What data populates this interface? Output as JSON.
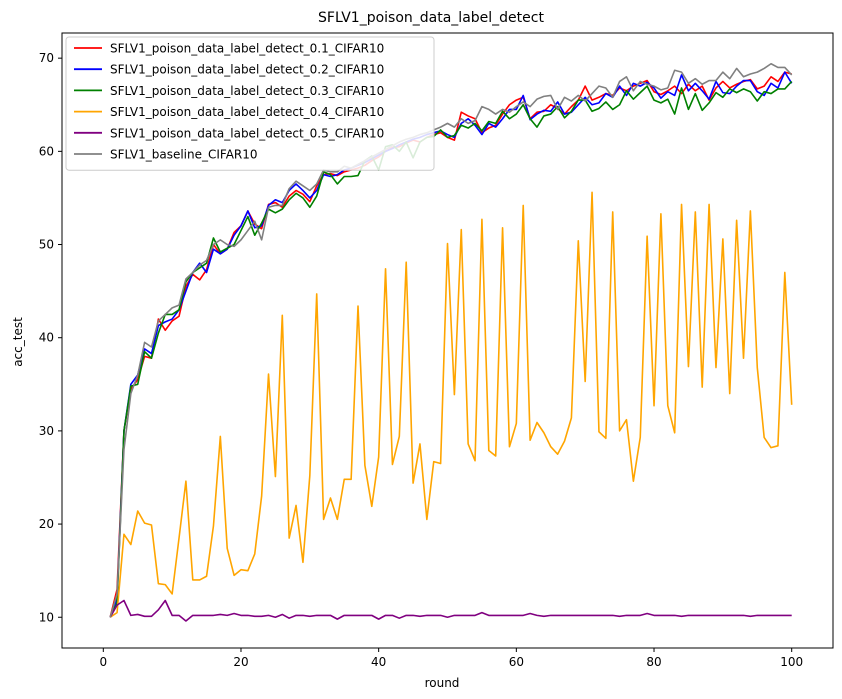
{
  "chart_data": {
    "type": "line",
    "title": "SFLV1_poison_data_label_detect",
    "xlabel": "round",
    "ylabel": "acc_test",
    "xlim": [
      -6,
      106
    ],
    "ylim": [
      6.7,
      72.7
    ],
    "xticks": [
      0,
      20,
      40,
      60,
      80,
      100
    ],
    "yticks": [
      10,
      20,
      30,
      40,
      50,
      60,
      70
    ],
    "grid": false,
    "legend_position": "top-left",
    "x": [
      1,
      2,
      3,
      4,
      5,
      6,
      7,
      8,
      9,
      10,
      11,
      12,
      13,
      14,
      15,
      16,
      17,
      18,
      19,
      20,
      21,
      22,
      23,
      24,
      25,
      26,
      27,
      28,
      29,
      30,
      31,
      32,
      33,
      34,
      35,
      36,
      37,
      38,
      39,
      40,
      41,
      42,
      43,
      44,
      45,
      46,
      47,
      48,
      49,
      50,
      51,
      52,
      53,
      54,
      55,
      56,
      57,
      58,
      59,
      60,
      61,
      62,
      63,
      64,
      65,
      66,
      67,
      68,
      69,
      70,
      71,
      72,
      73,
      74,
      75,
      76,
      77,
      78,
      79,
      80,
      81,
      82,
      83,
      84,
      85,
      86,
      87,
      88,
      89,
      90,
      91,
      92,
      93,
      94,
      95,
      96,
      97,
      98,
      99,
      100
    ],
    "series": [
      {
        "name": "SFLV1_poison_data_label_detect_0.1_CIFAR10",
        "color": "#ff0000",
        "values": [
          10.0,
          13.0,
          30.0,
          34.5,
          35.5,
          38.0,
          37.8,
          42.0,
          40.8,
          41.8,
          42.3,
          45.5,
          46.8,
          46.2,
          47.3,
          50.0,
          49.0,
          49.5,
          51.3,
          52.0,
          53.6,
          52.2,
          51.7,
          54.3,
          54.5,
          54.0,
          55.2,
          55.8,
          55.4,
          54.6,
          56.3,
          57.5,
          57.6,
          57.4,
          57.8,
          58.0,
          58.2,
          58.5,
          59.0,
          59.4,
          60.0,
          60.4,
          60.5,
          60.9,
          61.2,
          61.0,
          61.5,
          61.8,
          62.0,
          61.5,
          61.2,
          64.2,
          63.8,
          63.5,
          62.0,
          62.5,
          62.8,
          64.0,
          65.0,
          65.5,
          65.8,
          63.5,
          64.2,
          64.3,
          65.0,
          64.6,
          64.0,
          64.8,
          65.5,
          67.0,
          65.5,
          65.8,
          66.2,
          66.0,
          66.8,
          66.5,
          67.0,
          67.3,
          67.6,
          66.4,
          66.1,
          66.5,
          67.0,
          66.2,
          67.2,
          66.5,
          67.0,
          65.5,
          66.8,
          67.5,
          66.8,
          67.2,
          67.5,
          67.7,
          66.7,
          67.0,
          68.0,
          67.5,
          68.5,
          68.3
        ]
      },
      {
        "name": "SFLV1_poison_data_label_detect_0.2_CIFAR10",
        "color": "#0000ff",
        "values": [
          10.0,
          12.0,
          30.0,
          35.0,
          36.0,
          38.8,
          38.3,
          41.3,
          41.7,
          42.0,
          43.0,
          45.0,
          47.0,
          48.0,
          47.0,
          49.5,
          49.0,
          49.5,
          51.0,
          52.0,
          53.6,
          51.8,
          52.0,
          54.2,
          54.8,
          54.5,
          55.8,
          56.5,
          55.8,
          55.0,
          55.8,
          57.5,
          57.3,
          57.5,
          58.0,
          58.2,
          58.5,
          58.8,
          59.2,
          59.6,
          60.0,
          60.3,
          60.7,
          61.0,
          61.3,
          61.5,
          61.8,
          62.0,
          62.2,
          61.8,
          61.5,
          63.0,
          63.5,
          62.8,
          61.8,
          63.0,
          62.6,
          63.5,
          64.5,
          64.5,
          66.0,
          63.4,
          64.0,
          64.4,
          64.3,
          65.3,
          64.0,
          64.2,
          65.0,
          65.8,
          65.0,
          65.2,
          66.2,
          65.8,
          67.0,
          66.0,
          67.3,
          67.0,
          67.4,
          66.8,
          65.7,
          66.4,
          66.0,
          68.2,
          66.5,
          67.3,
          66.5,
          65.6,
          67.5,
          66.3,
          66.2,
          67.0,
          67.6,
          67.6,
          66.4,
          66.0,
          67.3,
          66.8,
          68.5,
          67.3
        ]
      },
      {
        "name": "SFLV1_poison_data_label_detect_0.3_CIFAR10",
        "color": "#008000",
        "values": [
          10.0,
          11.5,
          30.0,
          34.8,
          35.0,
          38.5,
          37.8,
          40.5,
          42.5,
          42.5,
          43.0,
          46.0,
          47.0,
          47.5,
          48.0,
          50.7,
          49.2,
          49.6,
          50.0,
          51.5,
          53.0,
          51.0,
          52.3,
          53.8,
          53.4,
          53.8,
          54.8,
          55.5,
          55.0,
          54.0,
          55.2,
          57.8,
          57.5,
          56.5,
          57.3,
          57.3,
          57.4,
          59.0,
          59.5,
          58.0,
          60.5,
          60.7,
          60.0,
          61.0,
          59.3,
          61.0,
          61.5,
          61.6,
          62.3,
          61.5,
          61.7,
          62.8,
          62.5,
          63.0,
          62.2,
          63.2,
          63.0,
          64.3,
          63.5,
          64.0,
          65.0,
          63.5,
          62.6,
          63.8,
          64.0,
          64.8,
          63.6,
          64.3,
          65.5,
          65.5,
          64.3,
          64.6,
          65.3,
          64.5,
          65.0,
          66.5,
          65.6,
          66.3,
          67.0,
          65.5,
          65.2,
          65.6,
          64.0,
          66.8,
          64.5,
          66.2,
          64.4,
          65.2,
          66.3,
          65.8,
          66.7,
          66.3,
          66.7,
          66.4,
          65.4,
          66.4,
          66.2,
          66.7,
          66.7,
          67.5
        ]
      },
      {
        "name": "SFLV1_poison_data_label_detect_0.4_CIFAR10",
        "color": "#ffa500",
        "values": [
          10.0,
          10.5,
          18.9,
          17.8,
          21.4,
          20.1,
          19.9,
          13.6,
          13.5,
          12.5,
          18.5,
          24.6,
          14.0,
          14.0,
          14.4,
          19.8,
          29.4,
          17.4,
          14.5,
          15.1,
          15.0,
          16.8,
          23.0,
          36.1,
          25.1,
          42.4,
          18.5,
          22.0,
          15.9,
          25.2,
          44.7,
          20.5,
          22.8,
          20.5,
          24.8,
          24.8,
          43.4,
          26.3,
          21.9,
          27.2,
          47.4,
          26.4,
          29.4,
          48.1,
          24.4,
          28.6,
          20.5,
          26.7,
          26.5,
          50.1,
          33.9,
          51.6,
          28.6,
          26.8,
          52.7,
          27.9,
          27.3,
          51.8,
          28.3,
          30.8,
          54.2,
          29.0,
          30.9,
          29.8,
          28.3,
          27.5,
          28.9,
          31.4,
          50.4,
          35.3,
          55.6,
          29.9,
          29.2,
          53.5,
          30.0,
          31.2,
          24.6,
          29.3,
          50.9,
          32.7,
          53.3,
          32.7,
          29.8,
          54.3,
          36.9,
          53.5,
          34.7,
          54.3,
          36.8,
          50.6,
          34.0,
          52.6,
          37.8,
          53.6,
          36.8,
          29.3,
          28.2,
          28.4,
          47.0,
          32.8
        ]
      },
      {
        "name": "SFLV1_poison_data_label_detect_0.5_CIFAR10",
        "color": "#800080",
        "values": [
          10.0,
          11.3,
          11.8,
          10.2,
          10.3,
          10.1,
          10.1,
          10.8,
          11.8,
          10.2,
          10.2,
          9.6,
          10.2,
          10.2,
          10.2,
          10.2,
          10.3,
          10.2,
          10.4,
          10.2,
          10.2,
          10.1,
          10.1,
          10.2,
          10.0,
          10.3,
          9.9,
          10.2,
          10.2,
          10.1,
          10.2,
          10.2,
          10.2,
          9.8,
          10.2,
          10.2,
          10.2,
          10.2,
          10.2,
          9.8,
          10.2,
          10.2,
          9.9,
          10.2,
          10.2,
          10.1,
          10.2,
          10.2,
          10.2,
          10.0,
          10.2,
          10.2,
          10.2,
          10.2,
          10.5,
          10.2,
          10.2,
          10.2,
          10.2,
          10.2,
          10.2,
          10.4,
          10.2,
          10.1,
          10.2,
          10.2,
          10.2,
          10.2,
          10.2,
          10.2,
          10.2,
          10.2,
          10.2,
          10.2,
          10.1,
          10.2,
          10.2,
          10.2,
          10.4,
          10.2,
          10.2,
          10.2,
          10.2,
          10.1,
          10.2,
          10.2,
          10.2,
          10.2,
          10.2,
          10.2,
          10.2,
          10.2,
          10.2,
          10.1,
          10.2,
          10.2,
          10.2,
          10.2,
          10.2,
          10.2
        ]
      },
      {
        "name": "SFLV1_baseline_CIFAR10",
        "color": "#808080",
        "values": [
          10.0,
          12.5,
          28.0,
          34.0,
          36.0,
          39.5,
          39.0,
          41.8,
          42.5,
          43.2,
          43.5,
          46.3,
          47.0,
          47.8,
          48.3,
          50.0,
          50.5,
          50.0,
          49.8,
          50.5,
          51.5,
          52.5,
          50.5,
          54.0,
          54.2,
          54.2,
          56.0,
          56.8,
          56.3,
          55.8,
          56.5,
          58.0,
          57.8,
          57.8,
          58.4,
          58.2,
          58.6,
          59.0,
          59.4,
          59.8,
          60.2,
          60.6,
          61.0,
          61.3,
          61.5,
          61.8,
          62.0,
          62.3,
          62.6,
          63.0,
          62.6,
          63.5,
          63.0,
          63.3,
          64.8,
          64.5,
          64.0,
          64.5,
          64.2,
          64.8,
          65.3,
          64.8,
          65.6,
          65.9,
          66.0,
          64.5,
          65.8,
          65.4,
          66.0,
          65.4,
          66.2,
          67.0,
          66.8,
          65.8,
          67.5,
          68.0,
          66.5,
          67.5,
          67.2,
          67.0,
          66.6,
          66.8,
          68.7,
          68.5,
          67.3,
          67.8,
          67.2,
          67.6,
          67.6,
          68.5,
          67.8,
          68.9,
          68.0,
          68.3,
          68.5,
          68.9,
          69.4,
          69.0,
          69.0,
          68.2
        ]
      }
    ]
  }
}
